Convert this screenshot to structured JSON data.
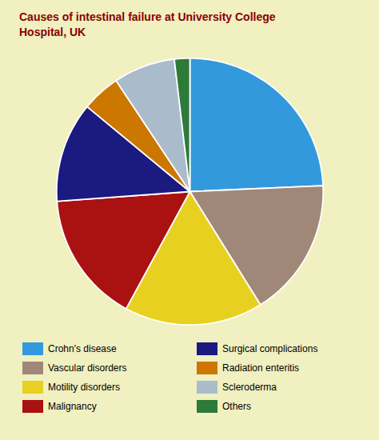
{
  "chart_data": {
    "type": "pie",
    "title": "Causes of intestinal failure at University College\nHospital, UK",
    "categories": [
      "Crohn's disease",
      "Vascular disorders",
      "Motility disorders",
      "Malignancy",
      "Surgical complications",
      "Radiation enteritis",
      "Scleroderma",
      "Others"
    ],
    "values": [
      26,
      18,
      18,
      17,
      13,
      5,
      8,
      2
    ],
    "colors": [
      "#3399DD",
      "#A08878",
      "#E8D020",
      "#AA1111",
      "#1A1A80",
      "#CC7700",
      "#AABBCC",
      "#2D7A3A"
    ],
    "data_labels": false
  }
}
